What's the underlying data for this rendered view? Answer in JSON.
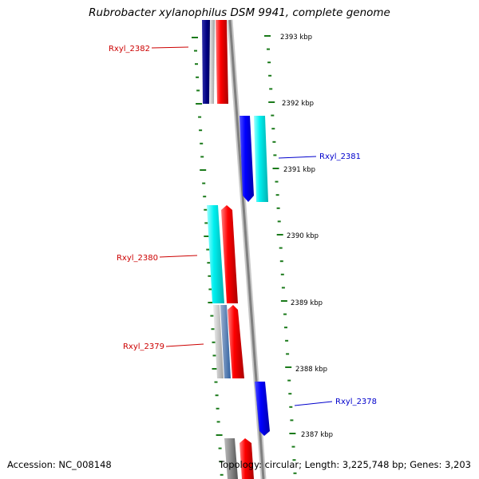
{
  "title": "Rubrobacter xylanophilus DSM 9941, complete genome",
  "accession": "Accession: NC_008148",
  "topology": "Topology: circular; Length: 3,225,748 bp; Genes: 3,203",
  "kbp_labels": [
    "2393 kbp",
    "2392 kbp",
    "2391 kbp",
    "2390 kbp",
    "2389 kbp",
    "2388 kbp",
    "2387 kbp"
  ],
  "gene_labels": [
    {
      "id": "rxyl-2382",
      "text": "Rxyl_2382",
      "color": "#cc0000"
    },
    {
      "id": "rxyl-2381",
      "text": "Rxyl_2381",
      "color": "#0000cc"
    },
    {
      "id": "rxyl-2380",
      "text": "Rxyl_2380",
      "color": "#cc0000"
    },
    {
      "id": "rxyl-2379",
      "text": "Rxyl_2379",
      "color": "#cc0000"
    },
    {
      "id": "rxyl-2378",
      "text": "Rxyl_2378",
      "color": "#0000cc"
    }
  ],
  "colors": {
    "tick": "#1a7a1a",
    "forward": "#ee0000",
    "reverse": "#0000ee",
    "cyan": "#00e0e0",
    "gray": "#808080",
    "navy": "#000088"
  }
}
